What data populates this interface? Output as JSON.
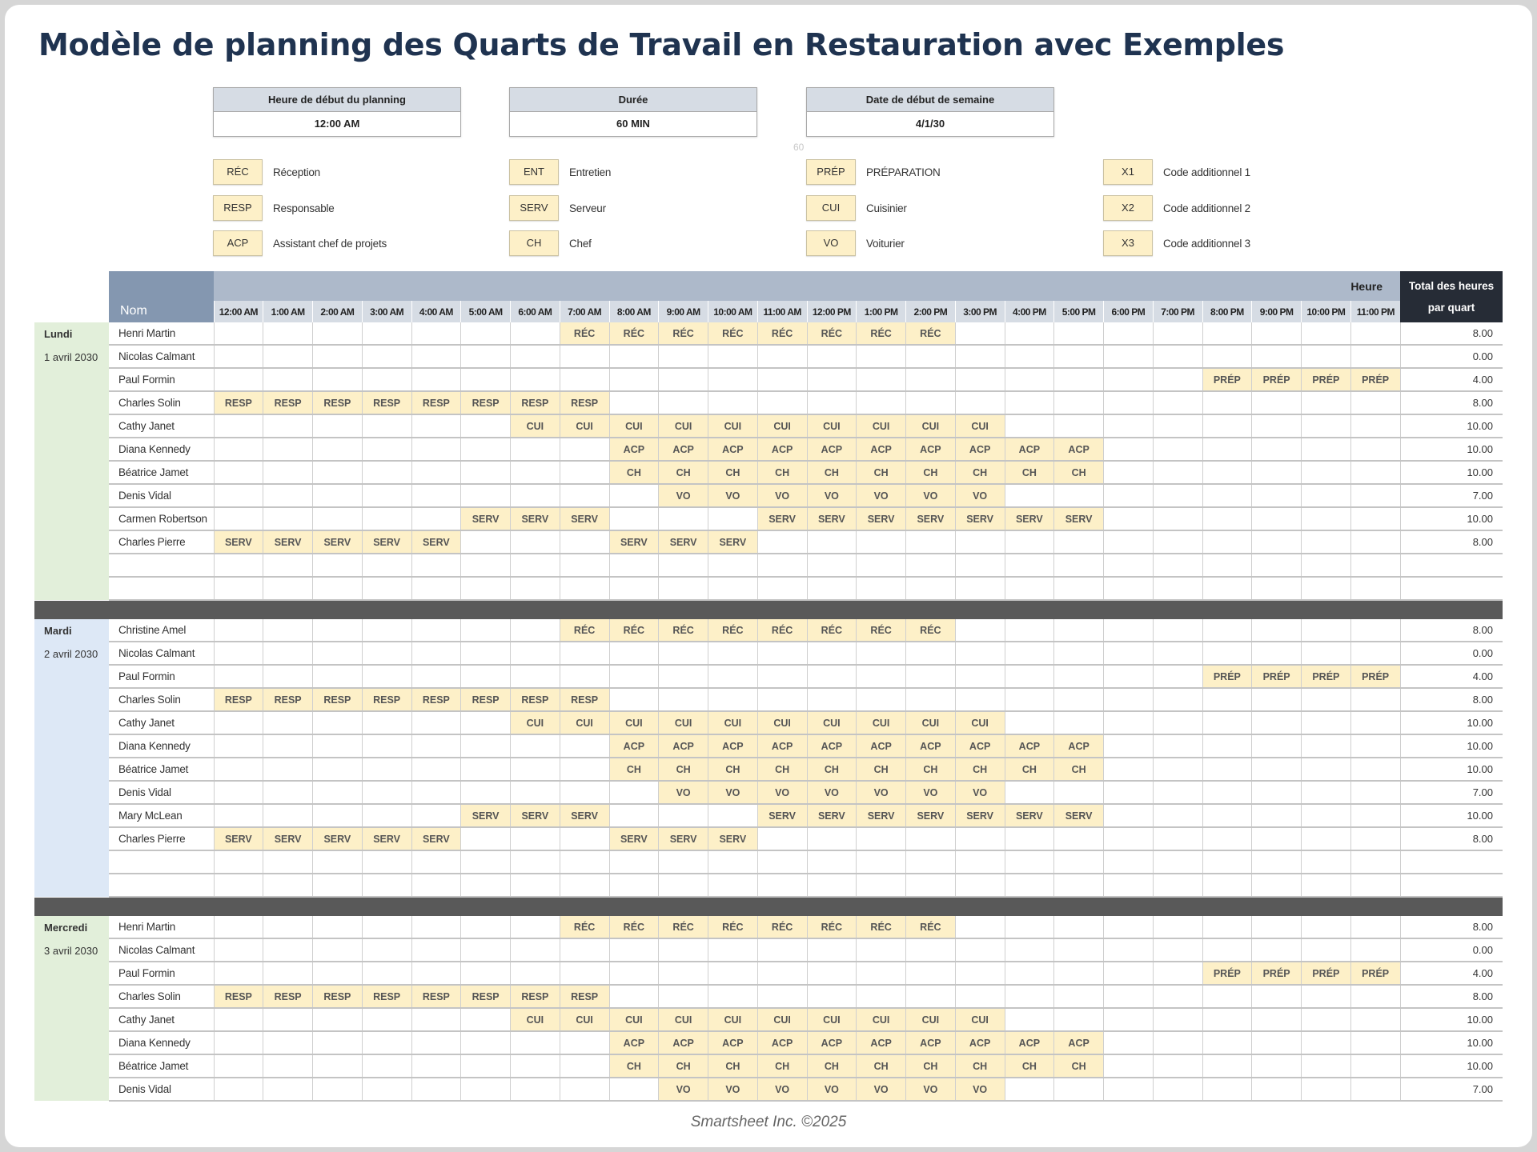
{
  "title": "Modèle de planning des Quarts de Travail en Restauration avec Exemples",
  "settings": [
    {
      "label": "Heure de début du planning",
      "value": "12:00 AM"
    },
    {
      "label": "Durée",
      "value": "60 MIN"
    },
    {
      "label": "Date de début de semaine",
      "value": "4/1/30"
    }
  ],
  "stray_value": "60",
  "legend": [
    [
      {
        "code": "RÉC",
        "label": "Réception"
      },
      {
        "code": "RESP",
        "label": "Responsable"
      },
      {
        "code": "ACP",
        "label": "Assistant chef de projets"
      }
    ],
    [
      {
        "code": "ENT",
        "label": "Entretien"
      },
      {
        "code": "SERV",
        "label": "Serveur"
      },
      {
        "code": "CH",
        "label": "Chef"
      }
    ],
    [
      {
        "code": "PRÉP",
        "label": "PRÉPARATION"
      },
      {
        "code": "CUI",
        "label": "Cuisinier"
      },
      {
        "code": "VO",
        "label": "Voiturier"
      }
    ],
    [
      {
        "code": "X1",
        "label": "Code additionnel 1"
      },
      {
        "code": "X2",
        "label": "Code additionnel 2"
      },
      {
        "code": "X3",
        "label": "Code additionnel 3"
      }
    ]
  ],
  "table": {
    "name_header": "Nom",
    "hour_header": "Heure",
    "total_header": "Total des heures par quart",
    "hours": [
      "12:00 AM",
      "1:00 AM",
      "2:00 AM",
      "3:00 AM",
      "4:00 AM",
      "5:00 AM",
      "6:00 AM",
      "7:00 AM",
      "8:00 AM",
      "9:00 AM",
      "10:00 AM",
      "11:00 AM",
      "12:00 PM",
      "1:00 PM",
      "2:00 PM",
      "3:00 PM",
      "4:00 PM",
      "5:00 PM",
      "6:00 PM",
      "7:00 PM",
      "8:00 PM",
      "9:00 PM",
      "10:00 PM",
      "11:00 PM"
    ],
    "days": [
      {
        "day": "Lundi",
        "date": "1 avril 2030",
        "color": "#e2efda",
        "blank_rows": 2,
        "rows": [
          {
            "name": "Henri Martin",
            "total": "8.00",
            "cells": [
              "",
              "",
              "",
              "",
              "",
              "",
              "",
              "RÉC",
              "RÉC",
              "RÉC",
              "RÉC",
              "RÉC",
              "RÉC",
              "RÉC",
              "RÉC",
              "",
              "",
              "",
              "",
              "",
              "",
              "",
              "",
              ""
            ]
          },
          {
            "name": "Nicolas Calmant",
            "total": "0.00",
            "cells": [
              "",
              "",
              "",
              "",
              "",
              "",
              "",
              "",
              "",
              "",
              "",
              "",
              "",
              "",
              "",
              "",
              "",
              "",
              "",
              "",
              "",
              "",
              "",
              ""
            ]
          },
          {
            "name": "Paul Formin",
            "total": "4.00",
            "cells": [
              "",
              "",
              "",
              "",
              "",
              "",
              "",
              "",
              "",
              "",
              "",
              "",
              "",
              "",
              "",
              "",
              "",
              "",
              "",
              "",
              "PRÉP",
              "PRÉP",
              "PRÉP",
              "PRÉP"
            ]
          },
          {
            "name": "Charles Solin",
            "total": "8.00",
            "cells": [
              "RESP",
              "RESP",
              "RESP",
              "RESP",
              "RESP",
              "RESP",
              "RESP",
              "RESP",
              "",
              "",
              "",
              "",
              "",
              "",
              "",
              "",
              "",
              "",
              "",
              "",
              "",
              "",
              "",
              ""
            ]
          },
          {
            "name": "Cathy Janet",
            "total": "10.00",
            "cells": [
              "",
              "",
              "",
              "",
              "",
              "",
              "CUI",
              "CUI",
              "CUI",
              "CUI",
              "CUI",
              "CUI",
              "CUI",
              "CUI",
              "CUI",
              "CUI",
              "",
              "",
              "",
              "",
              "",
              "",
              "",
              ""
            ]
          },
          {
            "name": "Diana Kennedy",
            "total": "10.00",
            "cells": [
              "",
              "",
              "",
              "",
              "",
              "",
              "",
              "",
              "ACP",
              "ACP",
              "ACP",
              "ACP",
              "ACP",
              "ACP",
              "ACP",
              "ACP",
              "ACP",
              "ACP",
              "",
              "",
              "",
              "",
              "",
              ""
            ]
          },
          {
            "name": "Béatrice Jamet",
            "total": "10.00",
            "cells": [
              "",
              "",
              "",
              "",
              "",
              "",
              "",
              "",
              "CH",
              "CH",
              "CH",
              "CH",
              "CH",
              "CH",
              "CH",
              "CH",
              "CH",
              "CH",
              "",
              "",
              "",
              "",
              "",
              ""
            ]
          },
          {
            "name": "Denis Vidal",
            "total": "7.00",
            "cells": [
              "",
              "",
              "",
              "",
              "",
              "",
              "",
              "",
              "",
              "VO",
              "VO",
              "VO",
              "VO",
              "VO",
              "VO",
              "VO",
              "",
              "",
              "",
              "",
              "",
              "",
              "",
              ""
            ]
          },
          {
            "name": "Carmen Robertson",
            "total": "10.00",
            "cells": [
              "",
              "",
              "",
              "",
              "",
              "SERV",
              "SERV",
              "SERV",
              "",
              "",
              "",
              "SERV",
              "SERV",
              "SERV",
              "SERV",
              "SERV",
              "SERV",
              "SERV",
              "",
              "",
              "",
              "",
              "",
              ""
            ]
          },
          {
            "name": "Charles Pierre",
            "total": "8.00",
            "cells": [
              "SERV",
              "SERV",
              "SERV",
              "SERV",
              "SERV",
              "",
              "",
              "",
              "SERV",
              "SERV",
              "SERV",
              "",
              "",
              "",
              "",
              "",
              "",
              "",
              "",
              "",
              "",
              "",
              "",
              ""
            ]
          }
        ]
      },
      {
        "day": "Mardi",
        "date": "2 avril 2030",
        "color": "#dde8f6",
        "blank_rows": 2,
        "rows": [
          {
            "name": "Christine Amel",
            "total": "8.00",
            "cells": [
              "",
              "",
              "",
              "",
              "",
              "",
              "",
              "RÉC",
              "RÉC",
              "RÉC",
              "RÉC",
              "RÉC",
              "RÉC",
              "RÉC",
              "RÉC",
              "",
              "",
              "",
              "",
              "",
              "",
              "",
              "",
              ""
            ]
          },
          {
            "name": "Nicolas Calmant",
            "total": "0.00",
            "cells": [
              "",
              "",
              "",
              "",
              "",
              "",
              "",
              "",
              "",
              "",
              "",
              "",
              "",
              "",
              "",
              "",
              "",
              "",
              "",
              "",
              "",
              "",
              "",
              ""
            ]
          },
          {
            "name": "Paul Formin",
            "total": "4.00",
            "cells": [
              "",
              "",
              "",
              "",
              "",
              "",
              "",
              "",
              "",
              "",
              "",
              "",
              "",
              "",
              "",
              "",
              "",
              "",
              "",
              "",
              "PRÉP",
              "PRÉP",
              "PRÉP",
              "PRÉP"
            ]
          },
          {
            "name": "Charles Solin",
            "total": "8.00",
            "cells": [
              "RESP",
              "RESP",
              "RESP",
              "RESP",
              "RESP",
              "RESP",
              "RESP",
              "RESP",
              "",
              "",
              "",
              "",
              "",
              "",
              "",
              "",
              "",
              "",
              "",
              "",
              "",
              "",
              "",
              ""
            ]
          },
          {
            "name": "Cathy Janet",
            "total": "10.00",
            "cells": [
              "",
              "",
              "",
              "",
              "",
              "",
              "CUI",
              "CUI",
              "CUI",
              "CUI",
              "CUI",
              "CUI",
              "CUI",
              "CUI",
              "CUI",
              "CUI",
              "",
              "",
              "",
              "",
              "",
              "",
              "",
              ""
            ]
          },
          {
            "name": "Diana Kennedy",
            "total": "10.00",
            "cells": [
              "",
              "",
              "",
              "",
              "",
              "",
              "",
              "",
              "ACP",
              "ACP",
              "ACP",
              "ACP",
              "ACP",
              "ACP",
              "ACP",
              "ACP",
              "ACP",
              "ACP",
              "",
              "",
              "",
              "",
              "",
              ""
            ]
          },
          {
            "name": "Béatrice Jamet",
            "total": "10.00",
            "cells": [
              "",
              "",
              "",
              "",
              "",
              "",
              "",
              "",
              "CH",
              "CH",
              "CH",
              "CH",
              "CH",
              "CH",
              "CH",
              "CH",
              "CH",
              "CH",
              "",
              "",
              "",
              "",
              "",
              ""
            ]
          },
          {
            "name": "Denis Vidal",
            "total": "7.00",
            "cells": [
              "",
              "",
              "",
              "",
              "",
              "",
              "",
              "",
              "",
              "VO",
              "VO",
              "VO",
              "VO",
              "VO",
              "VO",
              "VO",
              "",
              "",
              "",
              "",
              "",
              "",
              "",
              ""
            ]
          },
          {
            "name": "Mary McLean",
            "total": "10.00",
            "cells": [
              "",
              "",
              "",
              "",
              "",
              "SERV",
              "SERV",
              "SERV",
              "",
              "",
              "",
              "SERV",
              "SERV",
              "SERV",
              "SERV",
              "SERV",
              "SERV",
              "SERV",
              "",
              "",
              "",
              "",
              "",
              ""
            ]
          },
          {
            "name": "Charles Pierre",
            "total": "8.00",
            "cells": [
              "SERV",
              "SERV",
              "SERV",
              "SERV",
              "SERV",
              "",
              "",
              "",
              "SERV",
              "SERV",
              "SERV",
              "",
              "",
              "",
              "",
              "",
              "",
              "",
              "",
              "",
              "",
              "",
              "",
              ""
            ]
          }
        ]
      },
      {
        "day": "Mercredi",
        "date": "3 avril 2030",
        "color": "#e2efda",
        "blank_rows": 0,
        "rows": [
          {
            "name": "Henri Martin",
            "total": "8.00",
            "cells": [
              "",
              "",
              "",
              "",
              "",
              "",
              "",
              "RÉC",
              "RÉC",
              "RÉC",
              "RÉC",
              "RÉC",
              "RÉC",
              "RÉC",
              "RÉC",
              "",
              "",
              "",
              "",
              "",
              "",
              "",
              "",
              ""
            ]
          },
          {
            "name": "Nicolas Calmant",
            "total": "0.00",
            "cells": [
              "",
              "",
              "",
              "",
              "",
              "",
              "",
              "",
              "",
              "",
              "",
              "",
              "",
              "",
              "",
              "",
              "",
              "",
              "",
              "",
              "",
              "",
              "",
              ""
            ]
          },
          {
            "name": "Paul Formin",
            "total": "4.00",
            "cells": [
              "",
              "",
              "",
              "",
              "",
              "",
              "",
              "",
              "",
              "",
              "",
              "",
              "",
              "",
              "",
              "",
              "",
              "",
              "",
              "",
              "PRÉP",
              "PRÉP",
              "PRÉP",
              "PRÉP"
            ]
          },
          {
            "name": "Charles Solin",
            "total": "8.00",
            "cells": [
              "RESP",
              "RESP",
              "RESP",
              "RESP",
              "RESP",
              "RESP",
              "RESP",
              "RESP",
              "",
              "",
              "",
              "",
              "",
              "",
              "",
              "",
              "",
              "",
              "",
              "",
              "",
              "",
              "",
              ""
            ]
          },
          {
            "name": "Cathy Janet",
            "total": "10.00",
            "cells": [
              "",
              "",
              "",
              "",
              "",
              "",
              "CUI",
              "CUI",
              "CUI",
              "CUI",
              "CUI",
              "CUI",
              "CUI",
              "CUI",
              "CUI",
              "CUI",
              "",
              "",
              "",
              "",
              "",
              "",
              "",
              ""
            ]
          },
          {
            "name": "Diana Kennedy",
            "total": "10.00",
            "cells": [
              "",
              "",
              "",
              "",
              "",
              "",
              "",
              "",
              "ACP",
              "ACP",
              "ACP",
              "ACP",
              "ACP",
              "ACP",
              "ACP",
              "ACP",
              "ACP",
              "ACP",
              "",
              "",
              "",
              "",
              "",
              ""
            ]
          },
          {
            "name": "Béatrice Jamet",
            "total": "10.00",
            "cells": [
              "",
              "",
              "",
              "",
              "",
              "",
              "",
              "",
              "CH",
              "CH",
              "CH",
              "CH",
              "CH",
              "CH",
              "CH",
              "CH",
              "CH",
              "CH",
              "",
              "",
              "",
              "",
              "",
              ""
            ]
          },
          {
            "name": "Denis Vidal",
            "total": "7.00",
            "cells": [
              "",
              "",
              "",
              "",
              "",
              "",
              "",
              "",
              "",
              "VO",
              "VO",
              "VO",
              "VO",
              "VO",
              "VO",
              "VO",
              "",
              "",
              "",
              "",
              "",
              "",
              "",
              ""
            ]
          }
        ]
      }
    ]
  },
  "footer": "Smartsheet Inc. ©2025",
  "colors": {
    "title": "#1f3350",
    "code_fill": "#fdf0c8",
    "name_header": "#8497b0",
    "hour_band": "#adb9ca",
    "hour_row": "#d6dce4",
    "total_header": "#262c36",
    "day_separator": "#595959"
  }
}
